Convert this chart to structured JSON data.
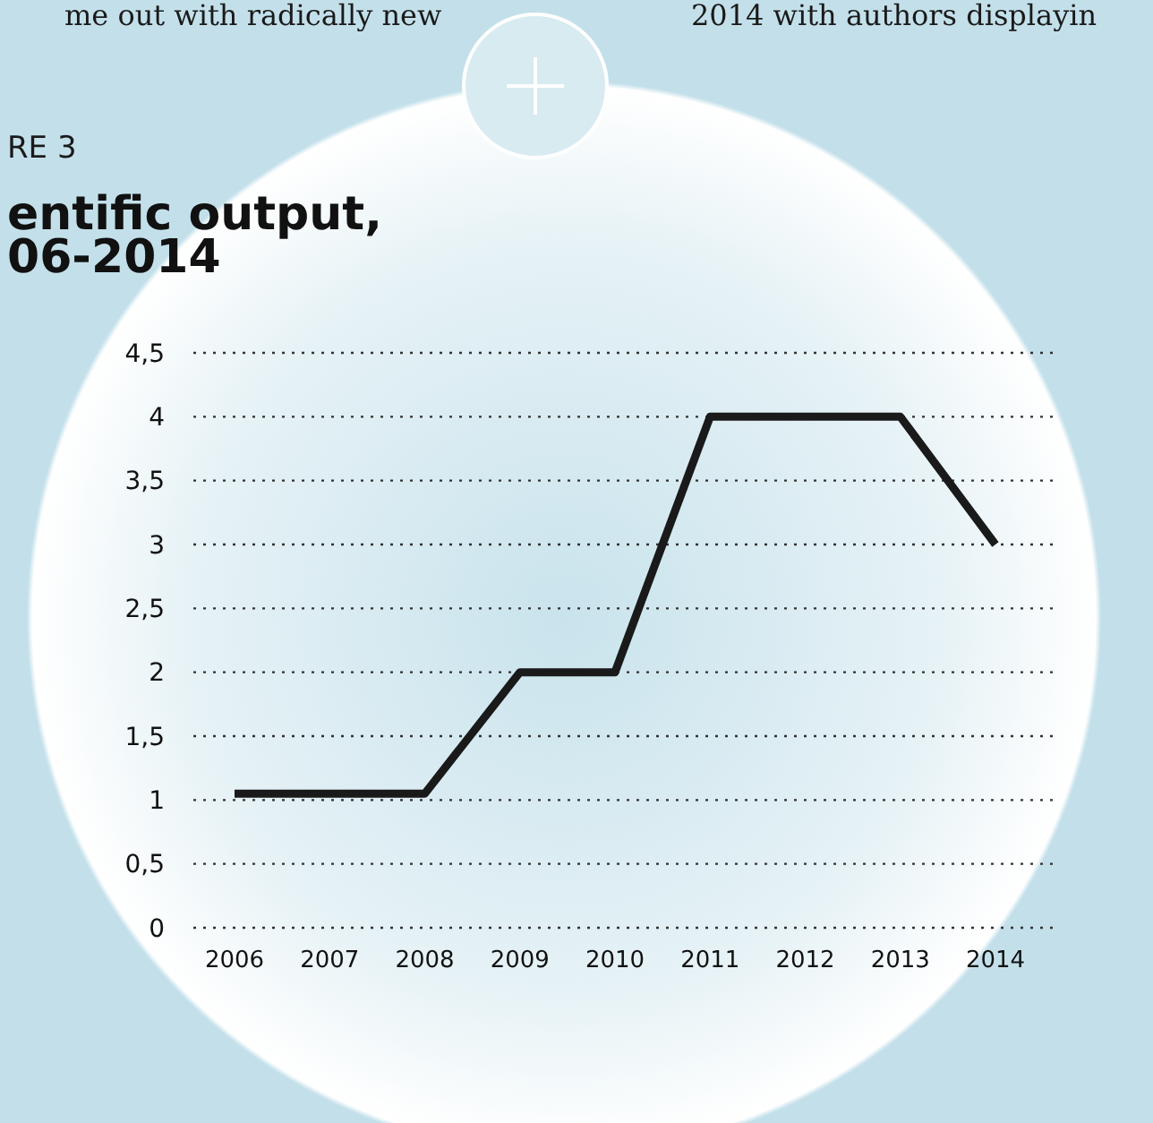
{
  "chart_data": {
    "type": "line",
    "title": "entific output, 06-2014",
    "annotations": [
      "me out with radically new",
      "2014 with authors displayin",
      "RE 3"
    ],
    "categories": [
      "2006",
      "2007",
      "2008",
      "2009",
      "2010",
      "2011",
      "2012",
      "2013",
      "2014"
    ],
    "series": [
      {
        "color": "#1a1a1a",
        "values": [
          1.05,
          1.05,
          1.05,
          2,
          2,
          4,
          4,
          4,
          3
        ]
      }
    ],
    "ylim": [
      0,
      4.5
    ],
    "yticks": [
      0,
      {
        "value": 0.5,
        "label": "0,5"
      },
      1,
      {
        "value": 1.5,
        "label": "1,5"
      },
      2,
      {
        "value": 2.5,
        "label": "2,5"
      },
      3,
      {
        "value": 3.5,
        "label": "3,5"
      },
      4,
      {
        "value": 4.5,
        "label": "4,5"
      }
    ],
    "grid": "y",
    "marker": "none",
    "line_style": "solid"
  }
}
